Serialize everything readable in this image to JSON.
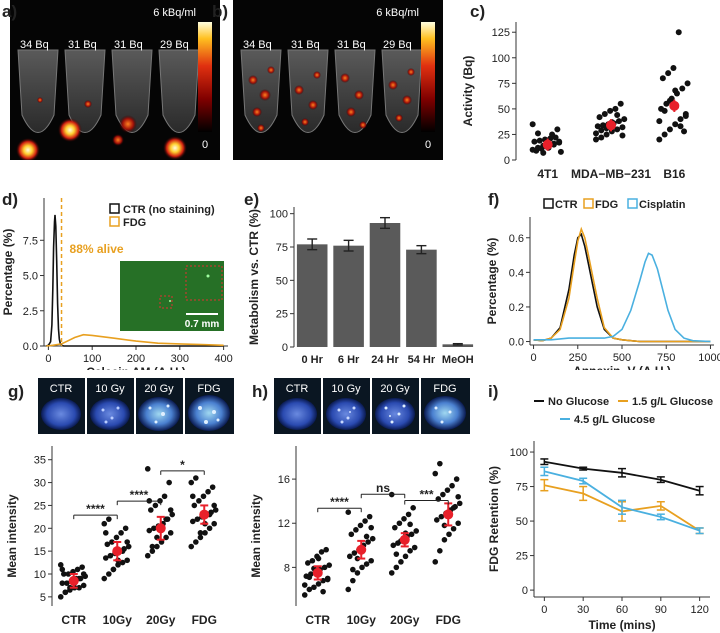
{
  "panel_labels": {
    "a": "a)",
    "b": "b)",
    "c": "c)",
    "d": "d)",
    "e": "e)",
    "f": "f)",
    "g": "g)",
    "h": "h)",
    "i": "i)"
  },
  "images": {
    "a": {
      "scale_max": "6 kBq/ml",
      "scale_min": "0",
      "tubes": [
        "34 Bq",
        "31 Bq",
        "31 Bq",
        "29 Bq"
      ]
    },
    "b": {
      "scale_max": "6 kBq/ml",
      "scale_min": "0",
      "tubes": [
        "34 Bq",
        "31 Bq",
        "31 Bq",
        "29 Bq"
      ]
    },
    "g": {
      "tiles": [
        "CTR",
        "10 Gy",
        "20 Gy",
        "FDG"
      ]
    },
    "h": {
      "tiles": [
        "CTR",
        "10 Gy",
        "20 Gy",
        "FDG"
      ]
    },
    "d_inset": {
      "scale_label": "0.7 mm"
    }
  },
  "chart_data": [
    {
      "id": "c",
      "type": "scatter",
      "ylabel": "Activity (Bq)",
      "xlabel": "",
      "categories": [
        "4T1",
        "MDA−MB−231",
        "B16"
      ],
      "ylim": [
        0,
        135
      ],
      "yticks": [
        0,
        25,
        50,
        75,
        100,
        125
      ],
      "means": [
        15,
        34,
        53
      ],
      "points": [
        [
          10,
          12,
          14,
          15,
          16,
          17,
          18,
          19,
          20,
          21,
          22,
          8,
          9,
          11,
          13,
          25,
          30,
          35,
          26,
          7,
          12,
          15,
          18
        ],
        [
          20,
          22,
          25,
          28,
          30,
          32,
          33,
          34,
          35,
          36,
          38,
          40,
          42,
          45,
          48,
          50,
          55,
          26,
          29,
          31,
          37,
          44,
          24
        ],
        [
          20,
          25,
          30,
          35,
          40,
          45,
          50,
          55,
          60,
          65,
          70,
          75,
          80,
          85,
          90,
          125,
          28,
          38,
          48,
          58,
          68,
          33,
          43
        ]
      ],
      "colors": {
        "point": "#111111",
        "mean": "#e8202a"
      }
    },
    {
      "id": "d",
      "type": "line",
      "xlabel": "Calcein AM (A.U.)",
      "ylabel": "Percentage (%)",
      "xlim": [
        -10,
        410
      ],
      "ylim": [
        0,
        10.5
      ],
      "xticks": [
        0,
        100,
        200,
        300,
        400
      ],
      "yticks": [
        0.0,
        2.5,
        5.0,
        7.5
      ],
      "series": [
        {
          "name": "CTR (no staining)",
          "color": "#111111",
          "x": [
            -5,
            0,
            5,
            8,
            10,
            12,
            14,
            15,
            17,
            19,
            21,
            23,
            25,
            27,
            30,
            35,
            40,
            60,
            100,
            200,
            300,
            400
          ],
          "y": [
            0,
            0.05,
            0.3,
            1.5,
            4,
            7,
            8.8,
            9.3,
            8.5,
            6,
            3,
            1.2,
            0.5,
            0.2,
            0.05,
            0,
            0,
            0,
            0,
            0,
            0,
            0
          ]
        },
        {
          "name": "FDG",
          "color": "#e8a020",
          "x": [
            -5,
            10,
            30,
            40,
            60,
            80,
            100,
            150,
            200,
            250,
            300,
            350,
            400
          ],
          "y": [
            0,
            0.05,
            0.15,
            0.3,
            0.6,
            0.8,
            0.75,
            0.55,
            0.35,
            0.2,
            0.15,
            0.1,
            0.05
          ]
        }
      ],
      "annotation": "88% alive",
      "threshold": 30
    },
    {
      "id": "e",
      "type": "bar",
      "ylabel": "Metabolism vs. CTR (%)",
      "categories": [
        "0 Hr",
        "6 Hr",
        "24 Hr",
        "54 Hr",
        "MeOH"
      ],
      "values": [
        77,
        76,
        93,
        73,
        2
      ],
      "errors": [
        4,
        4,
        4,
        3,
        0.5
      ],
      "ylim": [
        0,
        105
      ],
      "yticks": [
        0,
        25,
        50,
        75,
        100
      ],
      "color": "#5a5a5a"
    },
    {
      "id": "f",
      "type": "line",
      "xlabel": "Annexin−V (A.U.)",
      "ylabel": "Percentage (%)",
      "xlim": [
        -20,
        1020
      ],
      "ylim": [
        -0.02,
        0.72
      ],
      "xticks": [
        0,
        250,
        500,
        750,
        1000
      ],
      "yticks": [
        0.0,
        0.2,
        0.4,
        0.6
      ],
      "series": [
        {
          "name": "CTR",
          "color": "#111111",
          "x": [
            0,
            50,
            100,
            150,
            200,
            230,
            250,
            270,
            290,
            310,
            330,
            360,
            400,
            450,
            500,
            600,
            700,
            800,
            900,
            1000
          ],
          "y": [
            0.01,
            0.005,
            0.02,
            0.08,
            0.3,
            0.5,
            0.6,
            0.62,
            0.55,
            0.45,
            0.35,
            0.2,
            0.07,
            0.02,
            0.01,
            0,
            0,
            0,
            0,
            0
          ]
        },
        {
          "name": "FDG",
          "color": "#e8a020",
          "x": [
            0,
            50,
            100,
            150,
            200,
            230,
            250,
            270,
            290,
            310,
            330,
            360,
            400,
            450,
            500,
            600,
            700,
            800,
            900,
            1000
          ],
          "y": [
            0.01,
            0.005,
            0.02,
            0.07,
            0.25,
            0.45,
            0.58,
            0.65,
            0.6,
            0.5,
            0.4,
            0.25,
            0.08,
            0.02,
            0.01,
            0,
            0,
            0,
            0,
            0
          ]
        },
        {
          "name": "Cisplatin",
          "color": "#4ab0e0",
          "x": [
            0,
            100,
            200,
            300,
            400,
            450,
            500,
            550,
            600,
            630,
            650,
            670,
            700,
            730,
            760,
            800,
            850,
            900,
            1000
          ],
          "y": [
            0.01,
            0.01,
            0.02,
            0.02,
            0.02,
            0.03,
            0.07,
            0.18,
            0.35,
            0.46,
            0.51,
            0.5,
            0.42,
            0.3,
            0.18,
            0.07,
            0.02,
            0.005,
            0
          ]
        }
      ]
    },
    {
      "id": "g",
      "type": "scatter",
      "ylabel": "Mean intensity",
      "categories": [
        "CTR",
        "10Gy",
        "20Gy",
        "FDG"
      ],
      "ylim": [
        3,
        38
      ],
      "yticks": [
        5,
        10,
        15,
        20,
        25,
        30,
        35
      ],
      "means": [
        8.5,
        15,
        20,
        23
      ],
      "errors": [
        1.5,
        2,
        2.5,
        2
      ],
      "points": [
        [
          5,
          6,
          6.5,
          7,
          7,
          7.5,
          8,
          8,
          8.5,
          9,
          9,
          9.5,
          10,
          10,
          10.5,
          11,
          11.5,
          12,
          6,
          7,
          8,
          9,
          10,
          11
        ],
        [
          9,
          10,
          11,
          12,
          12.5,
          13,
          13.5,
          14,
          14.5,
          15,
          15.5,
          16,
          16.5,
          17,
          18,
          19,
          20,
          21,
          22,
          11,
          13,
          15,
          17,
          19
        ],
        [
          14,
          15,
          16,
          17,
          18,
          19,
          19.5,
          20,
          20.5,
          21,
          22,
          23,
          24,
          25,
          26,
          27,
          30,
          33,
          16,
          18,
          20,
          22,
          24,
          26
        ],
        [
          16,
          17,
          18,
          19,
          20,
          21,
          21.5,
          22,
          22.5,
          23,
          23.5,
          24,
          25,
          26,
          27,
          28,
          29,
          30,
          31,
          19,
          21,
          23,
          25,
          27
        ]
      ],
      "significance": [
        {
          "a": 0,
          "b": 1,
          "label": "****"
        },
        {
          "a": 1,
          "b": 2,
          "label": "****"
        },
        {
          "a": 2,
          "b": 3,
          "label": "*"
        }
      ],
      "colors": {
        "point": "#111111",
        "mean": "#e8202a"
      }
    },
    {
      "id": "h",
      "type": "scatter",
      "ylabel": "Mean intensity",
      "categories": [
        "CTR",
        "10Gy",
        "20Gy",
        "FDG"
      ],
      "ylim": [
        4.5,
        19
      ],
      "yticks": [
        8,
        12,
        16
      ],
      "means": [
        7.5,
        9.6,
        10.5,
        12.8
      ],
      "errors": [
        0.6,
        0.8,
        0.6,
        1
      ],
      "points": [
        [
          5.5,
          6,
          6.2,
          6.5,
          6.8,
          7,
          7.2,
          7.4,
          7.6,
          7.8,
          8,
          8.2,
          8.4,
          8.6,
          9,
          9.4,
          9.6,
          6.4,
          7.1,
          7.9,
          8.8,
          5.8,
          6.9
        ],
        [
          6,
          6.8,
          7.5,
          8,
          8.3,
          8.6,
          9,
          9.3,
          9.6,
          10,
          10.3,
          10.6,
          11,
          11.4,
          11.8,
          12.2,
          12.6,
          13,
          7.8,
          8.8,
          9.8,
          10.8,
          11.6
        ],
        [
          7.5,
          8,
          8.5,
          9,
          9.5,
          9.8,
          10,
          10.2,
          10.5,
          10.8,
          11,
          11.3,
          11.6,
          12,
          12.4,
          12.8,
          13.4,
          14.6,
          9.2,
          10.4,
          11.1,
          11.9
        ],
        [
          8.5,
          9.5,
          10.5,
          11,
          11.5,
          12,
          12.3,
          12.6,
          12.9,
          13.2,
          13.5,
          13.8,
          14.2,
          14.6,
          15,
          15.4,
          16,
          16.5,
          17.4,
          11.8,
          12.8,
          13.4,
          14.4
        ]
      ],
      "significance": [
        {
          "a": 0,
          "b": 1,
          "label": "****"
        },
        {
          "a": 1,
          "b": 2,
          "label": "ns"
        },
        {
          "a": 2,
          "b": 3,
          "label": "***"
        }
      ],
      "colors": {
        "point": "#111111",
        "mean": "#e8202a"
      }
    },
    {
      "id": "i",
      "type": "line",
      "xlabel": "Time (mins)",
      "ylabel": "FDG Retention (%)",
      "x": [
        0,
        30,
        60,
        90,
        120
      ],
      "xlim": [
        -8,
        128
      ],
      "ylim": [
        -5,
        108
      ],
      "yticks": [
        0,
        25,
        50,
        75,
        100
      ],
      "series": [
        {
          "name": "No Glucose",
          "color": "#111111",
          "values": [
            93,
            88,
            85,
            80,
            72
          ],
          "errors": [
            2,
            1,
            3,
            2,
            3
          ]
        },
        {
          "name": "1.5 g/L Glucose",
          "color": "#e8a020",
          "values": [
            76,
            70,
            57,
            61,
            43
          ],
          "errors": [
            4,
            5,
            7,
            3,
            2
          ]
        },
        {
          "name": "4.5 g/L Glucose",
          "color": "#4ab0e0",
          "values": [
            86,
            79,
            60,
            53,
            43
          ],
          "errors": [
            3,
            2,
            5,
            2,
            2
          ]
        }
      ]
    }
  ]
}
